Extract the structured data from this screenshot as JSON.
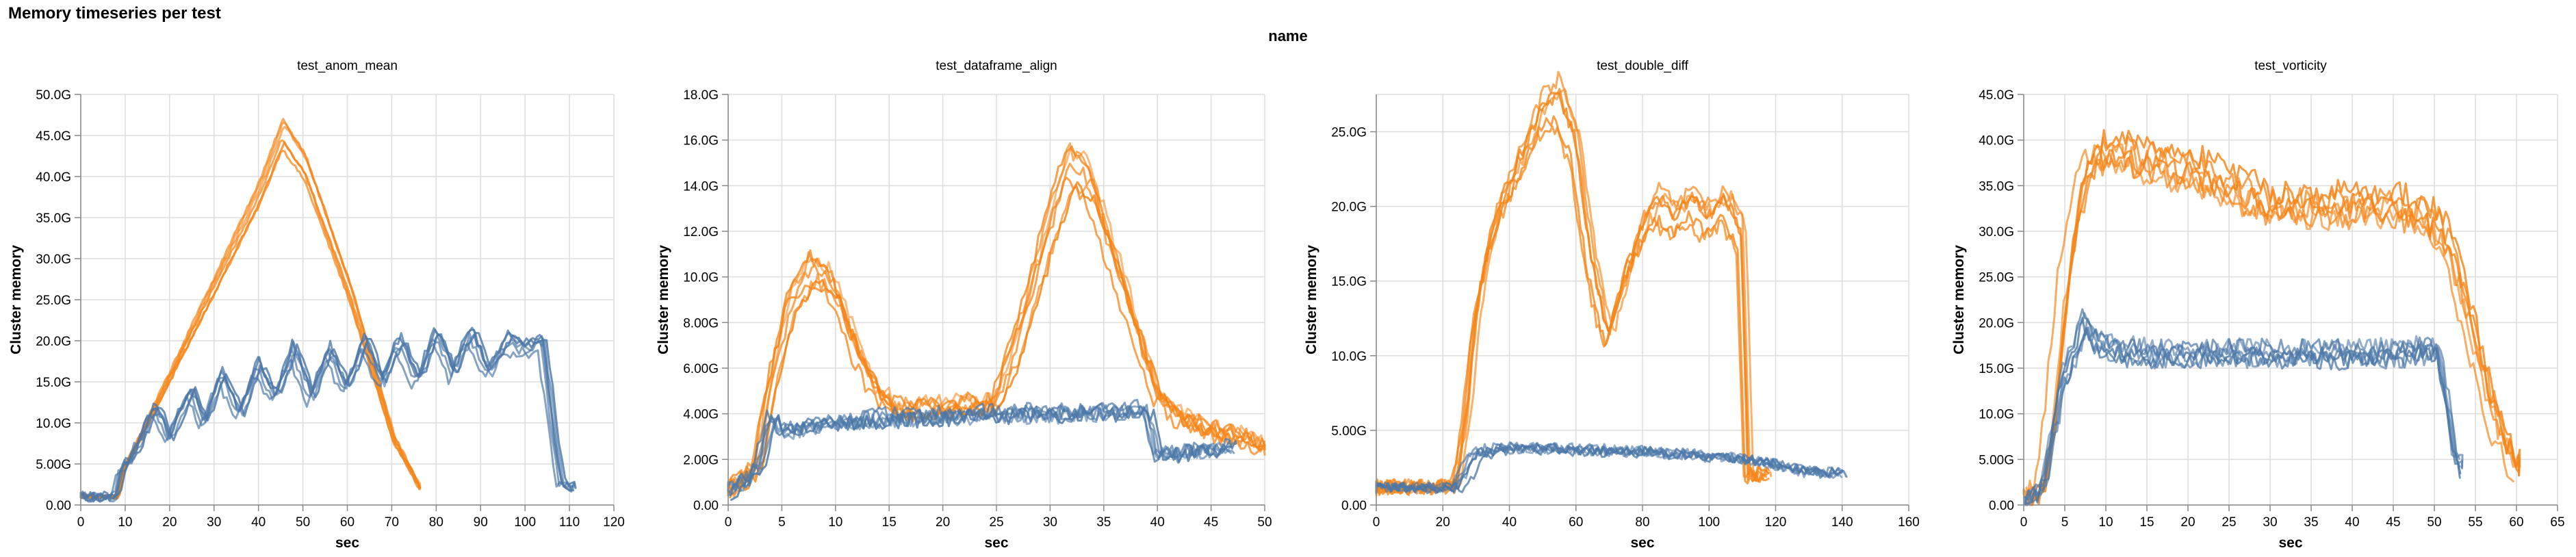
{
  "title": "Memory timeseries per test",
  "facet_label": "name",
  "colors": {
    "orange": "#f58518",
    "blue": "#4c78a8"
  },
  "chart_data": [
    {
      "type": "line",
      "title": "test_anom_mean",
      "xlabel": "sec",
      "ylabel": "Cluster memory",
      "xlim": [
        0,
        120
      ],
      "x_ticks": [
        0,
        10,
        20,
        30,
        40,
        50,
        60,
        70,
        80,
        90,
        100,
        110,
        120
      ],
      "ylim": [
        0,
        50
      ],
      "y_ticks": [
        0,
        5,
        10,
        15,
        20,
        25,
        30,
        35,
        40,
        45,
        50
      ],
      "y_tick_labels": [
        "0.00",
        "5.00G",
        "10.0G",
        "15.0G",
        "20.0G",
        "25.0G",
        "30.0G",
        "35.0G",
        "40.0G",
        "45.0G",
        "50.0G"
      ],
      "series": [
        {
          "name": "orange",
          "color": "#f58518",
          "copies": 6,
          "jitter": 0.8,
          "noise": 0.2,
          "x": [
            0,
            8,
            9,
            20,
            30,
            40,
            45,
            50,
            60,
            70,
            76
          ],
          "y": [
            1,
            1,
            4,
            16,
            27,
            38,
            45,
            41,
            26,
            8,
            2
          ]
        },
        {
          "name": "blue",
          "color": "#4c78a8",
          "copies": 6,
          "jitter": 1.2,
          "noise": 0.6,
          "x": [
            0,
            8,
            9,
            12,
            17,
            20,
            25,
            28,
            32,
            36,
            40,
            44,
            48,
            52,
            56,
            60,
            64,
            68,
            72,
            76,
            80,
            84,
            88,
            92,
            96,
            100,
            104,
            108,
            111
          ],
          "y": [
            1,
            1,
            4,
            6,
            12,
            8,
            14,
            10,
            16,
            11,
            17,
            13,
            19,
            13,
            19,
            14,
            20,
            15,
            20,
            15,
            21,
            16,
            21,
            16,
            20,
            19,
            20,
            3,
            2
          ]
        }
      ]
    },
    {
      "type": "line",
      "title": "test_dataframe_align",
      "xlabel": "sec",
      "ylabel": "Cluster memory",
      "xlim": [
        0,
        50
      ],
      "x_ticks": [
        0,
        5,
        10,
        15,
        20,
        25,
        30,
        35,
        40,
        45,
        50
      ],
      "ylim": [
        0,
        18
      ],
      "y_ticks": [
        0,
        2,
        4,
        6,
        8,
        10,
        12,
        14,
        16,
        18
      ],
      "y_tick_labels": [
        "0.00",
        "2.00G",
        "4.00G",
        "6.00G",
        "8.00G",
        "10.0G",
        "12.0G",
        "14.0G",
        "16.0G",
        "18.0G"
      ],
      "series": [
        {
          "name": "orange",
          "color": "#f58518",
          "copies": 7,
          "jitter": 0.7,
          "noise": 0.35,
          "x": [
            0,
            2,
            3,
            4,
            6,
            8,
            10,
            12,
            14,
            16,
            20,
            25,
            27,
            30,
            32,
            34,
            36,
            38,
            40,
            42,
            44,
            46,
            48,
            50
          ],
          "y": [
            0.6,
            1.3,
            2,
            5,
            9,
            10.5,
            9.5,
            7,
            5,
            4.2,
            4.3,
            4.4,
            7,
            12,
            15,
            14,
            11,
            8,
            5,
            4,
            3.5,
            3.2,
            3,
            2.6
          ]
        },
        {
          "name": "blue",
          "color": "#4c78a8",
          "copies": 6,
          "jitter": 0.6,
          "noise": 0.35,
          "x": [
            0,
            2,
            3,
            4,
            5,
            10,
            15,
            20,
            25,
            30,
            35,
            39,
            40,
            45,
            47
          ],
          "y": [
            0.6,
            1.2,
            2,
            4,
            3.3,
            3.7,
            3.9,
            4,
            4.1,
            4.1,
            4.2,
            4.2,
            2.2,
            2.5,
            2.6
          ]
        }
      ]
    },
    {
      "type": "line",
      "title": "test_double_diff",
      "xlabel": "sec",
      "ylabel": "Cluster memory",
      "xlim": [
        0,
        160
      ],
      "x_ticks": [
        0,
        20,
        40,
        60,
        80,
        100,
        120,
        140,
        160
      ],
      "ylim": [
        0,
        27.5
      ],
      "y_ticks": [
        0,
        5,
        10,
        15,
        20,
        25
      ],
      "y_tick_labels": [
        "0.00",
        "5.00G",
        "10.0G",
        "15.0G",
        "20.0G",
        "25.0G"
      ],
      "series": [
        {
          "name": "orange",
          "color": "#f58518",
          "copies": 6,
          "jitter": 2.0,
          "noise": 0.5,
          "x": [
            0,
            24,
            27,
            30,
            35,
            40,
            50,
            55,
            60,
            65,
            70,
            75,
            80,
            85,
            90,
            95,
            100,
            105,
            110,
            112,
            118
          ],
          "y": [
            1.2,
            1.2,
            5,
            12,
            18,
            21,
            26,
            27,
            24,
            16,
            11,
            15,
            18,
            20,
            19,
            20,
            19,
            20,
            18,
            2,
            2
          ]
        },
        {
          "name": "blue",
          "color": "#4c78a8",
          "copies": 6,
          "jitter": 2.5,
          "noise": 0.35,
          "x": [
            0,
            24,
            27,
            30,
            40,
            60,
            80,
            100,
            110,
            120,
            130,
            140
          ],
          "y": [
            1.2,
            1.2,
            2,
            3.5,
            4,
            3.8,
            3.7,
            3.4,
            3.2,
            2.8,
            2.3,
            2.2
          ]
        }
      ]
    },
    {
      "type": "line",
      "title": "test_vorticity",
      "xlabel": "sec",
      "ylabel": "Cluster memory",
      "xlim": [
        0,
        65
      ],
      "x_ticks": [
        0,
        5,
        10,
        15,
        20,
        25,
        30,
        35,
        40,
        45,
        50,
        55,
        60,
        65
      ],
      "ylim": [
        0,
        45
      ],
      "y_ticks": [
        0,
        5,
        10,
        15,
        20,
        25,
        30,
        35,
        40,
        45
      ],
      "y_tick_labels": [
        "0.00",
        "5.00G",
        "10.0G",
        "15.0G",
        "20.0G",
        "25.0G",
        "30.0G",
        "35.0G",
        "40.0G",
        "45.0G"
      ],
      "series": [
        {
          "name": "orange",
          "color": "#f58518",
          "copies": 6,
          "jitter": 1.0,
          "noise": 1.4,
          "x": [
            0,
            1,
            2,
            3,
            4,
            5,
            6,
            7,
            8,
            10,
            15,
            20,
            25,
            30,
            35,
            40,
            45,
            50,
            52,
            54,
            56,
            58,
            60
          ],
          "y": [
            0.5,
            1,
            2,
            8,
            18,
            26,
            32,
            36,
            38,
            39,
            38,
            37,
            35,
            33,
            33,
            33,
            33,
            31,
            27,
            20,
            13,
            7,
            4
          ]
        },
        {
          "name": "blue",
          "color": "#4c78a8",
          "copies": 6,
          "jitter": 0.8,
          "noise": 1.0,
          "x": [
            0,
            1,
            2,
            3,
            4,
            5,
            6,
            7,
            8,
            10,
            15,
            20,
            25,
            30,
            35,
            40,
            45,
            49,
            50,
            51,
            52,
            53
          ],
          "y": [
            0.5,
            1,
            2,
            7,
            12,
            15,
            17,
            20,
            18,
            17,
            16.5,
            16.5,
            16.5,
            16.5,
            16.5,
            16.5,
            16.5,
            17,
            17,
            12,
            6,
            4
          ]
        }
      ]
    }
  ]
}
